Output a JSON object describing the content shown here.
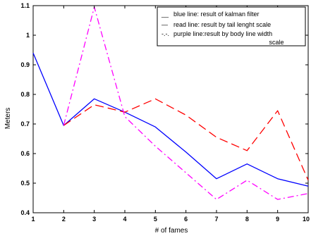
{
  "chart_data": {
    "type": "line",
    "xlabel": "# of fames",
    "ylabel": "Meters",
    "xlim": [
      1,
      10
    ],
    "ylim": [
      0.4,
      1.1
    ],
    "x_ticks": [
      "1",
      "2",
      "3",
      "4",
      "5",
      "6",
      "7",
      "8",
      "9",
      "10"
    ],
    "y_ticks": [
      "0.4",
      "0.5",
      "0.6",
      "0.7",
      "0.8",
      "0.9",
      "1",
      "1.1"
    ],
    "x": [
      1,
      2,
      3,
      4,
      5,
      6,
      7,
      8,
      9,
      10
    ],
    "series": [
      {
        "name": "blue line: result of kalman filter",
        "color": "#0000ff",
        "dash": "solid",
        "values": [
          0.94,
          0.695,
          0.785,
          0.74,
          0.69,
          0.605,
          0.515,
          0.565,
          0.515,
          0.49
        ]
      },
      {
        "name": "read line: result by tail lenght scale",
        "color": "#ff0000",
        "dash": "dashed",
        "values": [
          null,
          0.695,
          0.765,
          0.74,
          0.785,
          0.73,
          0.655,
          0.61,
          0.745,
          0.51
        ]
      },
      {
        "name": "purple line:result by body line width scale",
        "color": "#ff00ff",
        "dash": "dashdot",
        "values": [
          null,
          0.695,
          1.095,
          0.725,
          0.625,
          0.535,
          0.445,
          0.51,
          0.445,
          0.465
        ]
      }
    ],
    "legend_position": "top-right",
    "legend_markers": [
      "__",
      "—",
      "-.-."
    ]
  }
}
